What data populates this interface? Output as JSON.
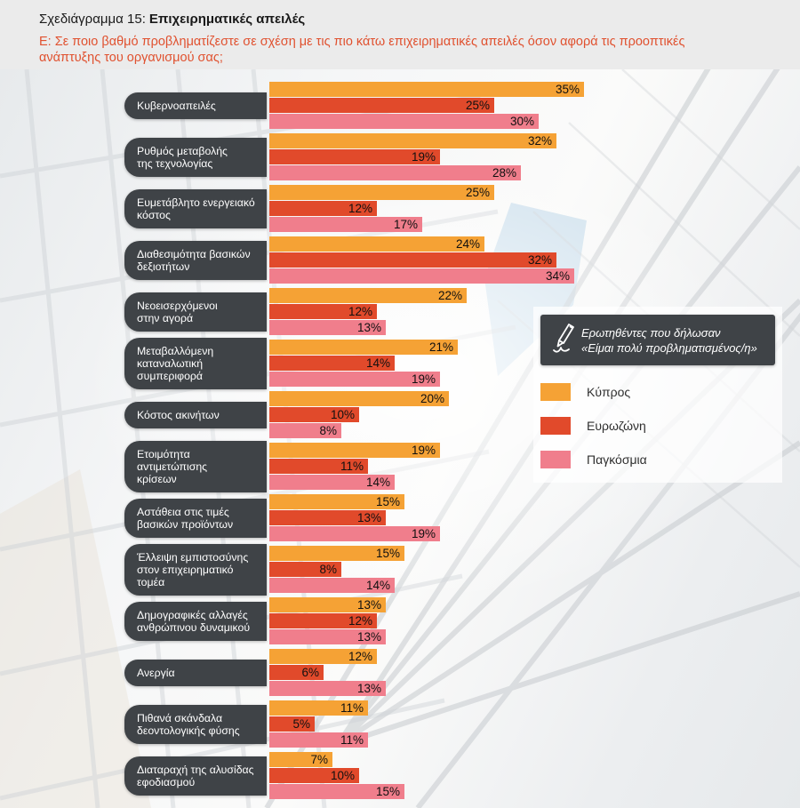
{
  "header": {
    "title_prefix": "Σχεδιάγραμμα 15:",
    "title_bold": "Επιχειρηματικές απειλές",
    "question": "Ε: Σε ποιο βαθμό προβληματίζεστε σε σχέση με τις πιο κάτω επιχειρηματικές απειλές όσον αφορά τις προοπτικές ανάπτυξης του οργανισμού σας;"
  },
  "legend": {
    "note_line1": "Ερωτηθέντες που δήλωσαν",
    "note_line2": "«Είμαι πολύ προβληματισμένος/η»",
    "pen_icon": "fountain-pen-icon",
    "series": [
      {
        "name": "Κύπρος",
        "color": "#F5A235"
      },
      {
        "name": "Ευρωζώνη",
        "color": "#E14A2B"
      },
      {
        "name": "Παγκόσμια",
        "color": "#F07E8C"
      }
    ]
  },
  "colors": {
    "question_text": "#E0512F",
    "label_box": "#3F4347",
    "value_text": "#101010",
    "header_background": "#EBEBEB"
  },
  "chart_data": {
    "type": "bar",
    "orientation": "horizontal",
    "unit": "%",
    "title": "Σχεδιάγραμμα 15: Επιχειρηματικές απειλές",
    "legend_position": "right",
    "value_labels": "inside-end",
    "xlim": [
      0,
      40
    ],
    "categories": [
      "Κυβερνοαπειλές",
      "Ρυθμός μεταβολής\nτης τεχνολογίας",
      "Ευμετάβλητο ενεργειακό\nκόστος",
      "Διαθεσιμότητα βασικών\nδεξιοτήτων",
      "Νεοεισερχόμενοι\nστην αγορά",
      "Μεταβαλλόμενη\nκαταναλωτική\nσυμπεριφορά",
      "Κόστος ακινήτων",
      "Ετοιμότητα αντιμετώπισης\nκρίσεων",
      "Αστάθεια στις τιμές\nβασικών προϊόντων",
      "Έλλειψη εμπιστοσύνης\nστον επιχειρηματικό τομέα",
      "Δημογραφικές αλλαγές\nανθρώπινου δυναμικού",
      "Ανεργία",
      "Πιθανά σκάνδαλα\nδεοντολογικής φύσης",
      "Διαταραχή της αλυσίδας\nεφοδιασμού"
    ],
    "series": [
      {
        "name": "Κύπρος",
        "values": [
          35,
          32,
          25,
          24,
          22,
          21,
          20,
          19,
          15,
          15,
          13,
          12,
          11,
          7
        ]
      },
      {
        "name": "Ευρωζώνη",
        "values": [
          25,
          19,
          12,
          32,
          12,
          14,
          10,
          11,
          13,
          8,
          12,
          6,
          5,
          10
        ]
      },
      {
        "name": "Παγκόσμια",
        "values": [
          30,
          28,
          17,
          34,
          13,
          19,
          8,
          14,
          19,
          14,
          13,
          13,
          11,
          15
        ]
      }
    ]
  }
}
